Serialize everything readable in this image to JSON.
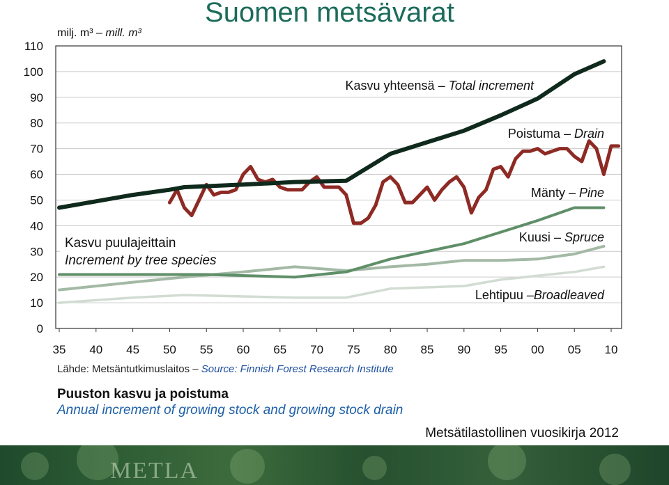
{
  "title": "Suomen metsävarat",
  "colors": {
    "title": "#1b6b5a",
    "total": "#0f2a1c",
    "drain": "#8e2a24",
    "pine": "#5f8f68",
    "spruce": "#a3b9a5",
    "broadleaved": "#d2dcd2",
    "source_en": "#1e4fa0",
    "heading_en": "#1d5fa8",
    "banner": "#2f5e35"
  },
  "chart_data": {
    "type": "line",
    "ylabel_fi": "milj. m³",
    "ylabel_en": "mill. m³",
    "ylim": [
      0,
      110
    ],
    "xlim": [
      1935,
      2011
    ],
    "y_ticks": [
      "0",
      "10",
      "20",
      "30",
      "40",
      "50",
      "60",
      "70",
      "80",
      "90",
      "100",
      "110"
    ],
    "x_ticks": [
      {
        "x": 1935,
        "label": "35"
      },
      {
        "x": 1940,
        "label": "40"
      },
      {
        "x": 1945,
        "label": "45"
      },
      {
        "x": 1950,
        "label": "50"
      },
      {
        "x": 1955,
        "label": "55"
      },
      {
        "x": 1960,
        "label": "60"
      },
      {
        "x": 1965,
        "label": "65"
      },
      {
        "x": 1970,
        "label": "70"
      },
      {
        "x": 1975,
        "label": "75"
      },
      {
        "x": 1980,
        "label": "80"
      },
      {
        "x": 1985,
        "label": "85"
      },
      {
        "x": 1990,
        "label": "90"
      },
      {
        "x": 1995,
        "label": "95"
      },
      {
        "x": 2000,
        "label": "00"
      },
      {
        "x": 2005,
        "label": "05"
      },
      {
        "x": 2010,
        "label": "10"
      }
    ],
    "grid": true,
    "series": [
      {
        "key": "total",
        "label_fi": "Kasvu yhteensä",
        "label_en": "Total increment",
        "points": [
          [
            1935,
            47
          ],
          [
            1940,
            49.5
          ],
          [
            1945,
            52
          ],
          [
            1950,
            54
          ],
          [
            1952,
            55
          ],
          [
            1960,
            56
          ],
          [
            1967,
            57
          ],
          [
            1974,
            57.5
          ],
          [
            1980,
            68
          ],
          [
            1985,
            72.5
          ],
          [
            1990,
            77
          ],
          [
            1995,
            83
          ],
          [
            2000,
            89.5
          ],
          [
            2005,
            99
          ],
          [
            2009,
            104
          ]
        ]
      },
      {
        "key": "drain",
        "label_fi": "Poistuma",
        "label_en": "Drain",
        "points": [
          [
            1950,
            49
          ],
          [
            1951,
            54
          ],
          [
            1952,
            47
          ],
          [
            1953,
            44
          ],
          [
            1954,
            50
          ],
          [
            1955,
            56
          ],
          [
            1956,
            52
          ],
          [
            1957,
            53
          ],
          [
            1958,
            53
          ],
          [
            1959,
            54
          ],
          [
            1960,
            60
          ],
          [
            1961,
            63
          ],
          [
            1962,
            58
          ],
          [
            1963,
            57
          ],
          [
            1964,
            58
          ],
          [
            1965,
            55
          ],
          [
            1966,
            54
          ],
          [
            1967,
            54
          ],
          [
            1968,
            54
          ],
          [
            1969,
            57
          ],
          [
            1970,
            59
          ],
          [
            1971,
            55
          ],
          [
            1972,
            55
          ],
          [
            1973,
            55
          ],
          [
            1974,
            52
          ],
          [
            1975,
            41
          ],
          [
            1976,
            41
          ],
          [
            1977,
            43
          ],
          [
            1978,
            48
          ],
          [
            1979,
            57
          ],
          [
            1980,
            59
          ],
          [
            1981,
            56
          ],
          [
            1982,
            49
          ],
          [
            1983,
            49
          ],
          [
            1984,
            52
          ],
          [
            1985,
            55
          ],
          [
            1986,
            50
          ],
          [
            1987,
            54
          ],
          [
            1988,
            57
          ],
          [
            1989,
            59
          ],
          [
            1990,
            55
          ],
          [
            1991,
            45
          ],
          [
            1992,
            51
          ],
          [
            1993,
            54
          ],
          [
            1994,
            62
          ],
          [
            1995,
            63
          ],
          [
            1996,
            59
          ],
          [
            1997,
            66
          ],
          [
            1998,
            69
          ],
          [
            1999,
            69
          ],
          [
            2000,
            70
          ],
          [
            2001,
            68
          ],
          [
            2002,
            69
          ],
          [
            2003,
            70
          ],
          [
            2004,
            70
          ],
          [
            2005,
            67
          ],
          [
            2006,
            65
          ],
          [
            2007,
            73
          ],
          [
            2008,
            70
          ],
          [
            2009,
            60
          ],
          [
            2010,
            71
          ],
          [
            2011,
            71
          ]
        ]
      },
      {
        "key": "pine",
        "label_fi": "Mänty",
        "label_en": "Pine",
        "points": [
          [
            1935,
            21
          ],
          [
            1945,
            21
          ],
          [
            1955,
            21
          ],
          [
            1967,
            20
          ],
          [
            1974,
            22
          ],
          [
            1980,
            27
          ],
          [
            1985,
            30
          ],
          [
            1990,
            33
          ],
          [
            1995,
            37.5
          ],
          [
            2000,
            42
          ],
          [
            2005,
            47
          ],
          [
            2009,
            47
          ]
        ]
      },
      {
        "key": "spruce",
        "label_fi": "Kuusi",
        "label_en": "Spruce",
        "points": [
          [
            1935,
            15
          ],
          [
            1945,
            18
          ],
          [
            1952,
            20
          ],
          [
            1960,
            22
          ],
          [
            1967,
            24
          ],
          [
            1974,
            22.5
          ],
          [
            1980,
            24
          ],
          [
            1985,
            25
          ],
          [
            1990,
            26.5
          ],
          [
            1995,
            26.5
          ],
          [
            2000,
            27
          ],
          [
            2005,
            29
          ],
          [
            2009,
            32
          ]
        ]
      },
      {
        "key": "broadleaved",
        "label_fi": "Lehtipuu",
        "label_en": "Broadleaved",
        "points": [
          [
            1935,
            10
          ],
          [
            1945,
            12
          ],
          [
            1952,
            13
          ],
          [
            1967,
            12
          ],
          [
            1974,
            12
          ],
          [
            1980,
            15.5
          ],
          [
            1990,
            16.5
          ],
          [
            1995,
            19
          ],
          [
            2000,
            20.5
          ],
          [
            2005,
            22
          ],
          [
            2009,
            24
          ]
        ]
      }
    ],
    "species_note_fi": "Kasvu puulajeittain",
    "species_note_en": "Increment by tree species"
  },
  "source_fi": "Lähde: Metsäntutkimuslaitos –",
  "source_en": "Source: Finnish Forest Research Institute",
  "heading_fi": "Puuston kasvu ja poistuma",
  "heading_en": "Annual increment of growing stock and growing stock drain",
  "yearbook": "Metsätilastollinen vuosikirja 2012",
  "banner_logo": "METLA"
}
